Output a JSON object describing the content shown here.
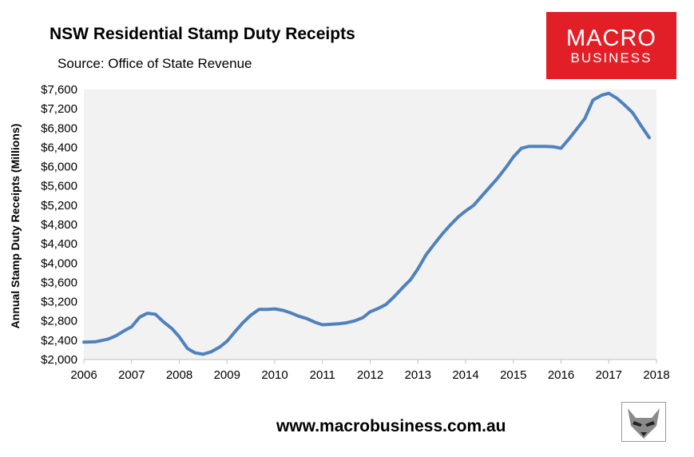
{
  "header": {
    "title": "NSW Residential Stamp Duty Receipts",
    "source": "Source: Office of State Revenue"
  },
  "logo": {
    "line1": "MACRO",
    "line2": "BUSINESS"
  },
  "footer": {
    "url": "www.macrobusiness.com.au"
  },
  "colors": {
    "line": "#4f81bd",
    "plot_bg": "#f2f2f2",
    "logo_bg": "#e21f26"
  },
  "chart_data": {
    "type": "line",
    "title": "NSW Residential Stamp Duty Receipts",
    "subtitle": "Source: Office of State Revenue",
    "xlabel": "",
    "ylabel": "Annual Stamp Duty Receipts (Millions)",
    "xlim": [
      2006,
      2018
    ],
    "ylim": [
      2000,
      7600
    ],
    "x_ticks": [
      "2006",
      "2007",
      "2008",
      "2009",
      "2010",
      "2011",
      "2012",
      "2013",
      "2014",
      "2015",
      "2016",
      "2017",
      "2018"
    ],
    "y_ticks": [
      "$2,000",
      "$2,400",
      "$2,800",
      "$3,200",
      "$3,600",
      "$4,000",
      "$4,400",
      "$4,800",
      "$5,200",
      "$5,600",
      "$6,000",
      "$6,400",
      "$6,800",
      "$7,200",
      "$7,600"
    ],
    "y_tick_values": [
      2000,
      2400,
      2800,
      3200,
      3600,
      4000,
      4400,
      4800,
      5200,
      5600,
      6000,
      6400,
      6800,
      7200,
      7600
    ],
    "grid": false,
    "legend": "none",
    "series": [
      {
        "x": [
          2006.0,
          2006.25,
          2006.5,
          2006.67,
          2006.85,
          2007.0,
          2007.17,
          2007.33,
          2007.5,
          2007.67,
          2007.85,
          2008.0,
          2008.17,
          2008.33,
          2008.5,
          2008.67,
          2008.85,
          2009.0,
          2009.17,
          2009.33,
          2009.5,
          2009.67,
          2009.85,
          2010.0,
          2010.17,
          2010.33,
          2010.5,
          2010.67,
          2010.85,
          2011.0,
          2011.17,
          2011.33,
          2011.5,
          2011.67,
          2011.85,
          2012.0,
          2012.17,
          2012.33,
          2012.5,
          2012.67,
          2012.85,
          2013.0,
          2013.17,
          2013.33,
          2013.5,
          2013.67,
          2013.85,
          2014.0,
          2014.17,
          2014.33,
          2014.5,
          2014.67,
          2014.85,
          2015.0,
          2015.17,
          2015.33,
          2015.5,
          2015.67,
          2015.85,
          2016.0,
          2016.17,
          2016.33,
          2016.5,
          2016.67,
          2016.85,
          2017.0,
          2017.17,
          2017.33,
          2017.5,
          2017.67,
          2017.85
        ],
        "y": [
          2360,
          2370,
          2420,
          2490,
          2600,
          2680,
          2880,
          2960,
          2940,
          2780,
          2640,
          2470,
          2230,
          2140,
          2110,
          2160,
          2260,
          2380,
          2580,
          2760,
          2920,
          3040,
          3040,
          3050,
          3020,
          2970,
          2900,
          2850,
          2770,
          2720,
          2730,
          2740,
          2760,
          2800,
          2870,
          2990,
          3060,
          3140,
          3300,
          3480,
          3660,
          3880,
          4170,
          4380,
          4590,
          4780,
          4960,
          5080,
          5200,
          5380,
          5570,
          5760,
          5990,
          6200,
          6380,
          6420,
          6420,
          6420,
          6410,
          6380,
          6580,
          6780,
          7000,
          7380,
          7480,
          7520,
          7420,
          7280,
          7120,
          6860,
          6600
        ]
      }
    ]
  }
}
